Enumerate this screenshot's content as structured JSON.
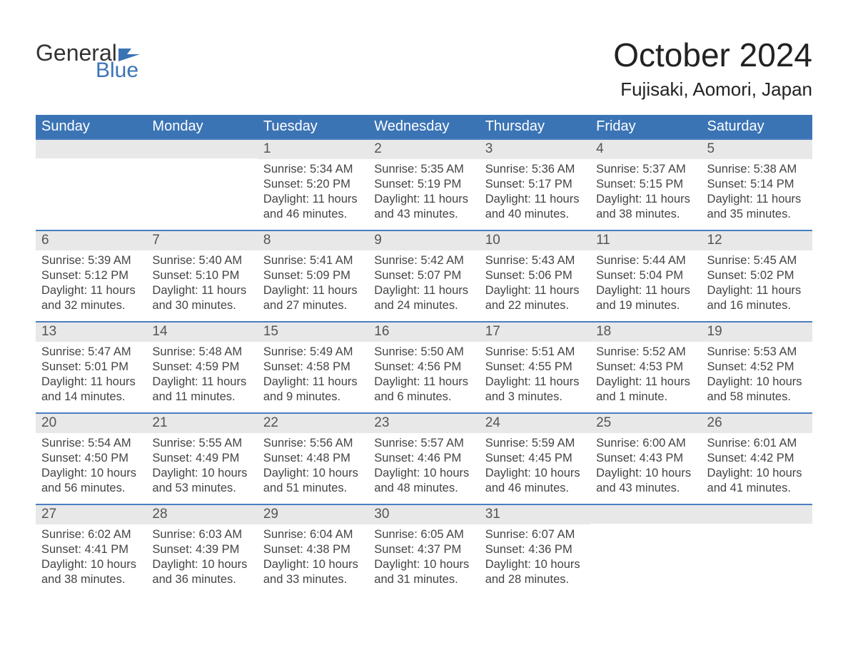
{
  "logo": {
    "top": "General",
    "bottom": "Blue",
    "flag_color": "#3b74b5"
  },
  "header": {
    "title": "October 2024",
    "location": "Fujisaki, Aomori, Japan",
    "title_color": "#222222",
    "title_fontsize": 46,
    "location_fontsize": 26
  },
  "colors": {
    "header_bg": "#3b74b5",
    "header_text": "#ffffff",
    "daynum_bg": "#e8e8e8",
    "row_border": "#4a7ec2",
    "body_text": "#444444",
    "page_bg": "#ffffff"
  },
  "dayNames": [
    "Sunday",
    "Monday",
    "Tuesday",
    "Wednesday",
    "Thursday",
    "Friday",
    "Saturday"
  ],
  "labels": {
    "sunrise": "Sunrise",
    "sunset": "Sunset",
    "daylight": "Daylight"
  },
  "calendar": {
    "type": "table",
    "columns": 7,
    "rows": 5,
    "grid": [
      [
        null,
        null,
        {
          "n": 1,
          "sunrise": "5:34 AM",
          "sunset": "5:20 PM",
          "daylight": "11 hours and 46 minutes."
        },
        {
          "n": 2,
          "sunrise": "5:35 AM",
          "sunset": "5:19 PM",
          "daylight": "11 hours and 43 minutes."
        },
        {
          "n": 3,
          "sunrise": "5:36 AM",
          "sunset": "5:17 PM",
          "daylight": "11 hours and 40 minutes."
        },
        {
          "n": 4,
          "sunrise": "5:37 AM",
          "sunset": "5:15 PM",
          "daylight": "11 hours and 38 minutes."
        },
        {
          "n": 5,
          "sunrise": "5:38 AM",
          "sunset": "5:14 PM",
          "daylight": "11 hours and 35 minutes."
        }
      ],
      [
        {
          "n": 6,
          "sunrise": "5:39 AM",
          "sunset": "5:12 PM",
          "daylight": "11 hours and 32 minutes."
        },
        {
          "n": 7,
          "sunrise": "5:40 AM",
          "sunset": "5:10 PM",
          "daylight": "11 hours and 30 minutes."
        },
        {
          "n": 8,
          "sunrise": "5:41 AM",
          "sunset": "5:09 PM",
          "daylight": "11 hours and 27 minutes."
        },
        {
          "n": 9,
          "sunrise": "5:42 AM",
          "sunset": "5:07 PM",
          "daylight": "11 hours and 24 minutes."
        },
        {
          "n": 10,
          "sunrise": "5:43 AM",
          "sunset": "5:06 PM",
          "daylight": "11 hours and 22 minutes."
        },
        {
          "n": 11,
          "sunrise": "5:44 AM",
          "sunset": "5:04 PM",
          "daylight": "11 hours and 19 minutes."
        },
        {
          "n": 12,
          "sunrise": "5:45 AM",
          "sunset": "5:02 PM",
          "daylight": "11 hours and 16 minutes."
        }
      ],
      [
        {
          "n": 13,
          "sunrise": "5:47 AM",
          "sunset": "5:01 PM",
          "daylight": "11 hours and 14 minutes."
        },
        {
          "n": 14,
          "sunrise": "5:48 AM",
          "sunset": "4:59 PM",
          "daylight": "11 hours and 11 minutes."
        },
        {
          "n": 15,
          "sunrise": "5:49 AM",
          "sunset": "4:58 PM",
          "daylight": "11 hours and 9 minutes."
        },
        {
          "n": 16,
          "sunrise": "5:50 AM",
          "sunset": "4:56 PM",
          "daylight": "11 hours and 6 minutes."
        },
        {
          "n": 17,
          "sunrise": "5:51 AM",
          "sunset": "4:55 PM",
          "daylight": "11 hours and 3 minutes."
        },
        {
          "n": 18,
          "sunrise": "5:52 AM",
          "sunset": "4:53 PM",
          "daylight": "11 hours and 1 minute."
        },
        {
          "n": 19,
          "sunrise": "5:53 AM",
          "sunset": "4:52 PM",
          "daylight": "10 hours and 58 minutes."
        }
      ],
      [
        {
          "n": 20,
          "sunrise": "5:54 AM",
          "sunset": "4:50 PM",
          "daylight": "10 hours and 56 minutes."
        },
        {
          "n": 21,
          "sunrise": "5:55 AM",
          "sunset": "4:49 PM",
          "daylight": "10 hours and 53 minutes."
        },
        {
          "n": 22,
          "sunrise": "5:56 AM",
          "sunset": "4:48 PM",
          "daylight": "10 hours and 51 minutes."
        },
        {
          "n": 23,
          "sunrise": "5:57 AM",
          "sunset": "4:46 PM",
          "daylight": "10 hours and 48 minutes."
        },
        {
          "n": 24,
          "sunrise": "5:59 AM",
          "sunset": "4:45 PM",
          "daylight": "10 hours and 46 minutes."
        },
        {
          "n": 25,
          "sunrise": "6:00 AM",
          "sunset": "4:43 PM",
          "daylight": "10 hours and 43 minutes."
        },
        {
          "n": 26,
          "sunrise": "6:01 AM",
          "sunset": "4:42 PM",
          "daylight": "10 hours and 41 minutes."
        }
      ],
      [
        {
          "n": 27,
          "sunrise": "6:02 AM",
          "sunset": "4:41 PM",
          "daylight": "10 hours and 38 minutes."
        },
        {
          "n": 28,
          "sunrise": "6:03 AM",
          "sunset": "4:39 PM",
          "daylight": "10 hours and 36 minutes."
        },
        {
          "n": 29,
          "sunrise": "6:04 AM",
          "sunset": "4:38 PM",
          "daylight": "10 hours and 33 minutes."
        },
        {
          "n": 30,
          "sunrise": "6:05 AM",
          "sunset": "4:37 PM",
          "daylight": "10 hours and 31 minutes."
        },
        {
          "n": 31,
          "sunrise": "6:07 AM",
          "sunset": "4:36 PM",
          "daylight": "10 hours and 28 minutes."
        },
        null,
        null
      ]
    ]
  }
}
